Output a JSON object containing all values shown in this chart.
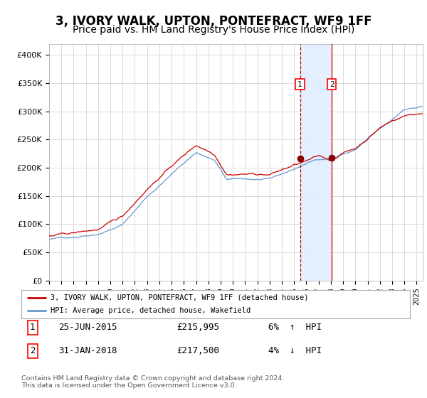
{
  "title": "3, IVORY WALK, UPTON, PONTEFRACT, WF9 1FF",
  "subtitle": "Price paid vs. HM Land Registry's House Price Index (HPI)",
  "title_fontsize": 12,
  "subtitle_fontsize": 10,
  "ylim": [
    0,
    420000
  ],
  "yticks": [
    0,
    50000,
    100000,
    150000,
    200000,
    250000,
    300000,
    350000,
    400000
  ],
  "ytick_labels": [
    "£0",
    "£50K",
    "£100K",
    "£150K",
    "£200K",
    "£250K",
    "£300K",
    "£350K",
    "£400K"
  ],
  "line1_color": "#cc0000",
  "line2_color": "#6699cc",
  "line1_label": "3, IVORY WALK, UPTON, PONTEFRACT, WF9 1FF (detached house)",
  "line2_label": "HPI: Average price, detached house, Wakefield",
  "marker_color": "#880000",
  "vline_color": "#cc0000",
  "shade_color": "#ddeeff",
  "annotation1_date": 2015.48,
  "annotation2_date": 2018.08,
  "annotation1_value": 215995,
  "annotation2_value": 217500,
  "footer": "Contains HM Land Registry data © Crown copyright and database right 2024.\nThis data is licensed under the Open Government Licence v3.0.",
  "background_color": "#ffffff",
  "grid_color": "#cccccc",
  "xlim_start": 1995,
  "xlim_end": 2025.5,
  "hpi_keypoints_t": [
    1995,
    1997,
    1999,
    2001,
    2003,
    2005,
    2007,
    2008.5,
    2009.5,
    2011,
    2013,
    2015,
    2016,
    2017,
    2018,
    2019,
    2020,
    2021,
    2022,
    2023,
    2024,
    2025.5
  ],
  "hpi_keypoints_v": [
    73000,
    78000,
    86000,
    103000,
    153000,
    193000,
    232000,
    218000,
    183000,
    183000,
    181000,
    198000,
    208000,
    216000,
    218000,
    226000,
    233000,
    252000,
    268000,
    283000,
    303000,
    308000
  ],
  "prop_keypoints_t": [
    1995,
    1997,
    1999,
    2001,
    2003,
    2005,
    2007,
    2008.5,
    2009.5,
    2011,
    2013,
    2015,
    2016,
    2017,
    2018,
    2019,
    2020,
    2021,
    2022,
    2023,
    2024,
    2025.5
  ],
  "prop_keypoints_v": [
    79000,
    83000,
    89000,
    110000,
    161000,
    203000,
    240000,
    226000,
    193000,
    195000,
    194000,
    210000,
    216000,
    223000,
    216000,
    230000,
    238000,
    256000,
    276000,
    288000,
    298000,
    303000
  ],
  "noise_seed": 42,
  "hpi_noise_scale": 400,
  "prop_noise_scale": 500
}
